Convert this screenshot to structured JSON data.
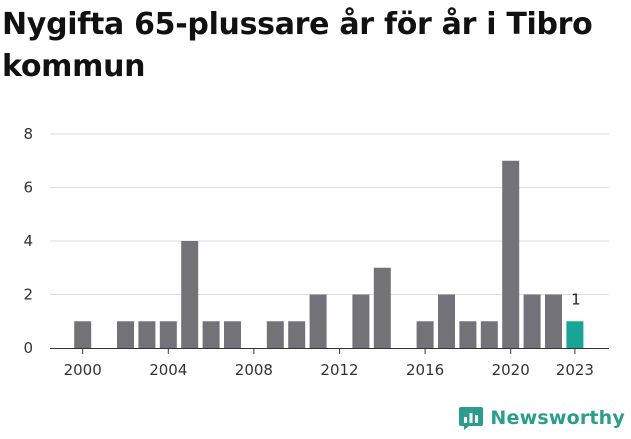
{
  "title": "Nygifta 65-plussare år för år i Tibro kommun",
  "brand": {
    "name": "Newsworthy",
    "icon": "newsworthy-logo-icon"
  },
  "colors": {
    "bar": "#737278",
    "highlight": "#18a596",
    "grid": "#dddddd",
    "brand": "#2a9d8f"
  },
  "chart_data": {
    "type": "bar",
    "title": "Nygifta 65-plussare år för år i Tibro kommun",
    "x": [
      2000,
      2001,
      2002,
      2003,
      2004,
      2005,
      2006,
      2007,
      2008,
      2009,
      2010,
      2011,
      2012,
      2013,
      2014,
      2015,
      2016,
      2017,
      2018,
      2019,
      2020,
      2021,
      2022,
      2023
    ],
    "values": [
      1,
      0,
      1,
      1,
      1,
      4,
      1,
      1,
      0,
      1,
      1,
      2,
      0,
      2,
      3,
      0,
      1,
      2,
      1,
      1,
      7,
      2,
      2,
      1
    ],
    "highlight_x": 2023,
    "highlight_label": "1",
    "xticks": [
      "2000",
      "2004",
      "2008",
      "2012",
      "2016",
      "2020",
      "2023"
    ],
    "yticks": [
      "0",
      "2",
      "4",
      "6",
      "8"
    ],
    "ylim": [
      0,
      8
    ],
    "grid": true,
    "legend": "none",
    "xlabel": "",
    "ylabel": ""
  }
}
